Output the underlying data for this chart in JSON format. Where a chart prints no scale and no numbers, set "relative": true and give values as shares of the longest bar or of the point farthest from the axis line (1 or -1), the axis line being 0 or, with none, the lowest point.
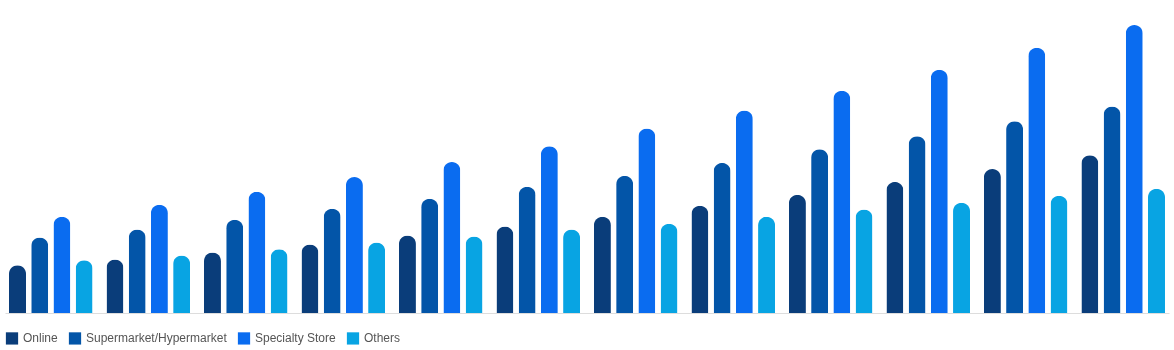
{
  "chart_data": {
    "type": "bar",
    "relative": true,
    "legend": "bottom",
    "categories": [
      null,
      null,
      null,
      null,
      null,
      null,
      null,
      null,
      null,
      null,
      null,
      null
    ],
    "series": [
      {
        "name": "Online",
        "color": "#0a3d7a",
        "values": [
          0.166,
          0.186,
          0.21,
          0.238,
          0.269,
          0.3,
          0.334,
          0.372,
          0.41,
          0.455,
          0.5,
          0.548
        ]
      },
      {
        "name": "Supermarket/Hypermarket",
        "color": "#0355a8",
        "values": [
          0.262,
          0.29,
          0.324,
          0.362,
          0.397,
          0.438,
          0.476,
          0.521,
          0.569,
          0.614,
          0.666,
          0.717
        ]
      },
      {
        "name": "Specialty Store",
        "color": "#0a6cf0",
        "values": [
          0.334,
          0.376,
          0.421,
          0.472,
          0.524,
          0.579,
          0.641,
          0.703,
          0.772,
          0.845,
          0.921,
          1
        ]
      },
      {
        "name": "Others",
        "color": "#08a4e3",
        "values": [
          0.183,
          0.2,
          0.221,
          0.245,
          0.266,
          0.29,
          0.31,
          0.334,
          0.359,
          0.383,
          0.407,
          0.431
        ]
      }
    ]
  }
}
